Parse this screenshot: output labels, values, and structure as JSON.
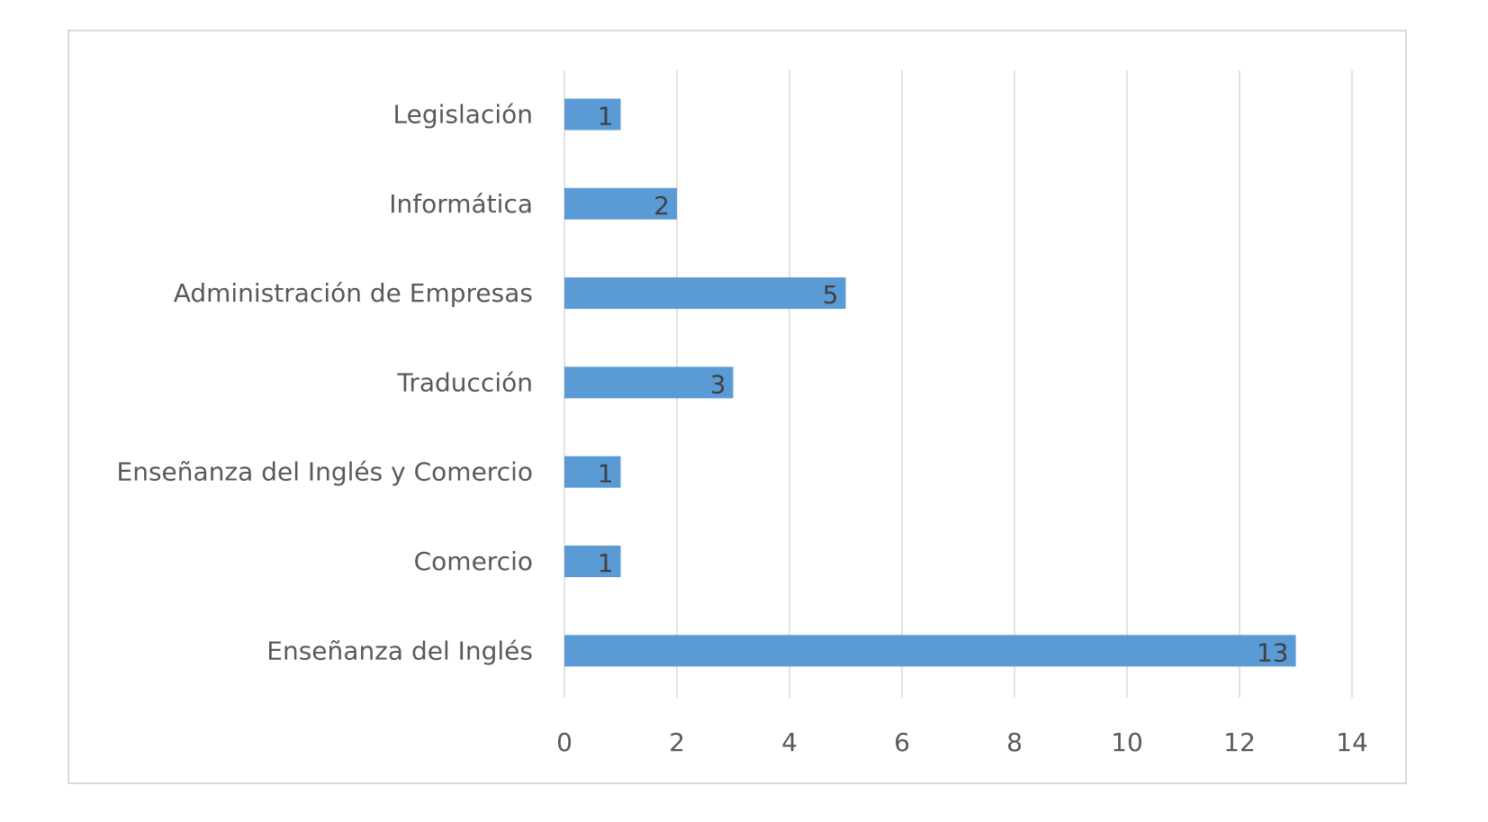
{
  "chart_data": {
    "type": "bar",
    "orientation": "horizontal",
    "categories": [
      "Legislación",
      "Informática",
      "Administración de Empresas",
      "Traducción",
      "Enseñanza del Inglés y Comercio",
      "Comercio",
      "Enseñanza del Inglés"
    ],
    "values": [
      1,
      2,
      5,
      3,
      1,
      1,
      13
    ],
    "title": "",
    "xlabel": "",
    "ylabel": "",
    "xlim": [
      0,
      14
    ],
    "xticks": [
      0,
      2,
      4,
      6,
      8,
      10,
      12,
      14
    ],
    "grid": true,
    "legend": "none",
    "data_labels": "inside-end",
    "bar_color": "#5b9bd5",
    "grid_color": "#d9d9d9",
    "label_color": "#595959"
  }
}
